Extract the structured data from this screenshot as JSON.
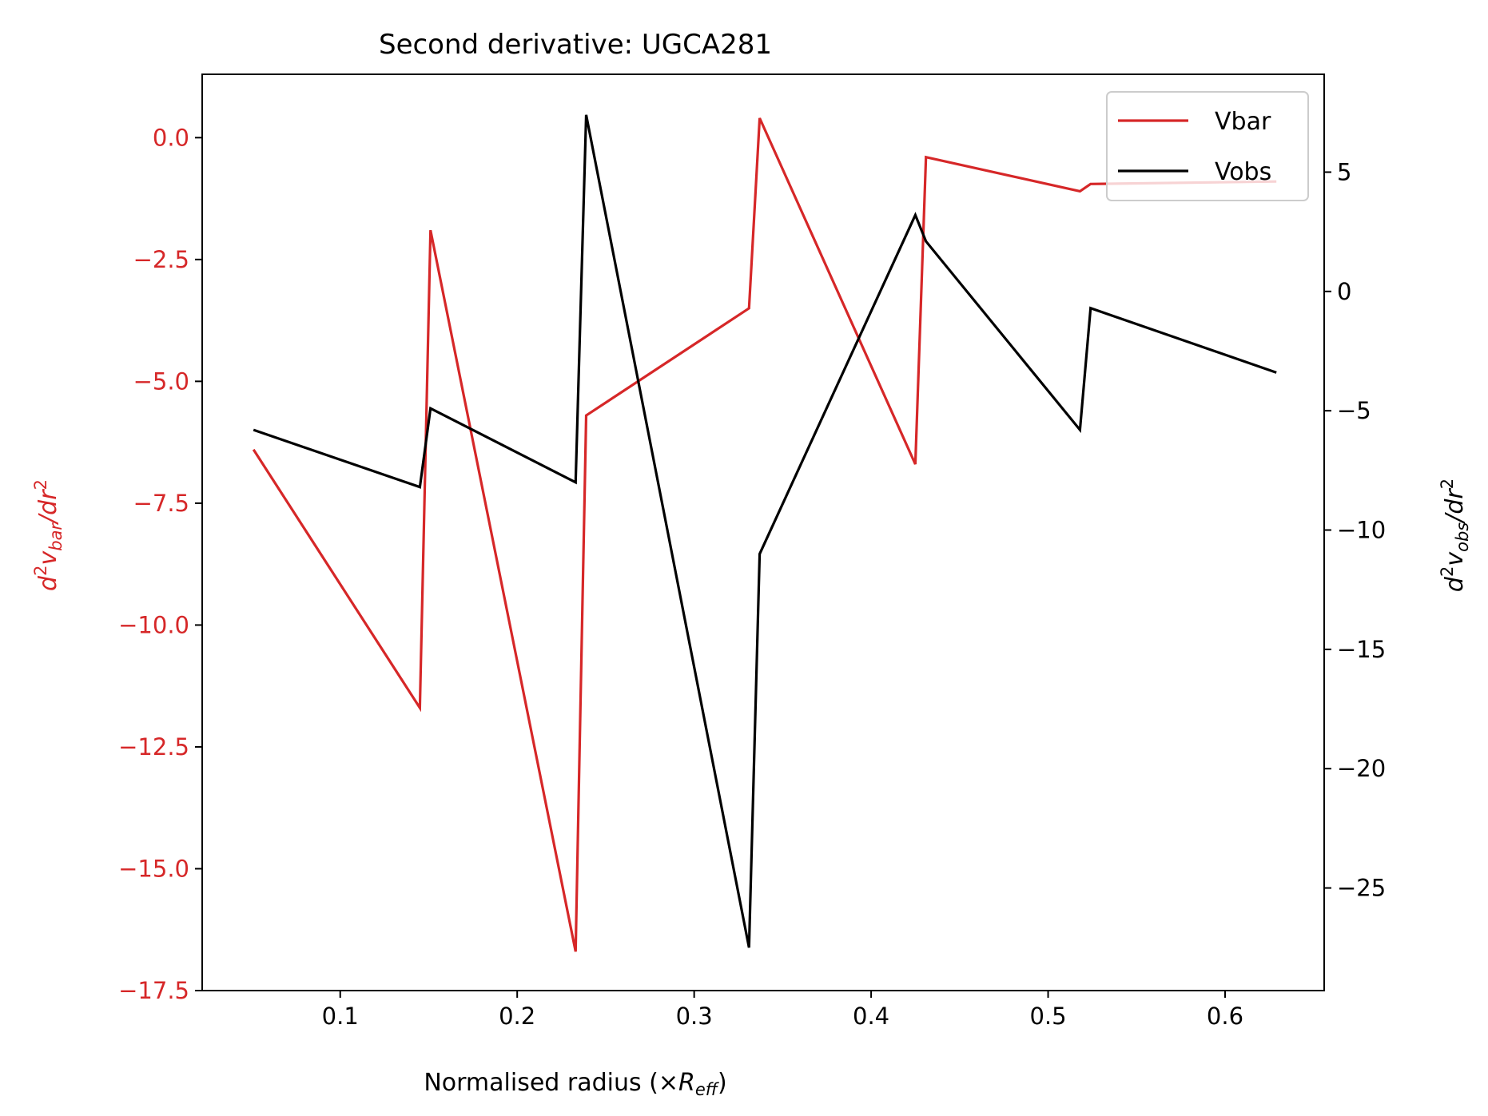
{
  "chart_data": {
    "type": "line",
    "title": "Second derivative: UGCA281",
    "xlabel": {
      "main": "Normalised radius (×",
      "sym": "R",
      "sub": "eff",
      "close": ")"
    },
    "ylabel_left": {
      "d": "d",
      "sup1": "2",
      "v": "v",
      "sub": "bar",
      "slash": "/",
      "dr": "dr",
      "sup2": "2"
    },
    "ylabel_right": {
      "d": "d",
      "sup1": "2",
      "v": "v",
      "sub": "obs",
      "slash": "/",
      "dr": "dr",
      "sup2": "2"
    },
    "xlim": [
      0.022,
      0.656
    ],
    "ylim_left": [
      -17.5,
      1.3
    ],
    "ylim_right": [
      -29.3,
      9.1
    ],
    "x_ticks": [
      0.1,
      0.2,
      0.3,
      0.4,
      0.5,
      0.6
    ],
    "x_tick_labels": [
      "0.1",
      "0.2",
      "0.3",
      "0.4",
      "0.5",
      "0.6"
    ],
    "y_left_ticks": [
      0.0,
      -2.5,
      -5.0,
      -7.5,
      -10.0,
      -12.5,
      -15.0,
      -17.5
    ],
    "y_left_tick_labels": [
      "0.0",
      "−2.5",
      "−5.0",
      "−7.5",
      "−10.0",
      "−12.5",
      "−15.0",
      "−17.5"
    ],
    "y_right_ticks": [
      5,
      0,
      -5,
      -10,
      -15,
      -20,
      -25
    ],
    "y_right_tick_labels": [
      "5",
      "0",
      "−5",
      "−10",
      "−15",
      "−20",
      "−25"
    ],
    "legend": {
      "placement": "top-right"
    },
    "grid": false,
    "series": [
      {
        "name": "Vbar",
        "axis": "left",
        "color": "#d62728",
        "x": [
          0.051,
          0.145,
          0.151,
          0.233,
          0.239,
          0.331,
          0.337,
          0.425,
          0.431,
          0.518,
          0.524,
          0.629
        ],
        "y": [
          -6.4,
          -11.7,
          -1.9,
          -16.7,
          -5.7,
          -3.5,
          0.4,
          -6.7,
          -0.4,
          -1.1,
          -0.95,
          -0.9
        ]
      },
      {
        "name": "Vobs",
        "axis": "right",
        "color": "#000000",
        "x": [
          0.051,
          0.145,
          0.151,
          0.233,
          0.239,
          0.331,
          0.337,
          0.425,
          0.431,
          0.518,
          0.524,
          0.629
        ],
        "y": [
          -5.8,
          -8.2,
          -4.9,
          -8.0,
          7.4,
          -27.5,
          -11.0,
          3.2,
          2.1,
          -5.8,
          -0.7,
          -3.4
        ]
      }
    ]
  }
}
